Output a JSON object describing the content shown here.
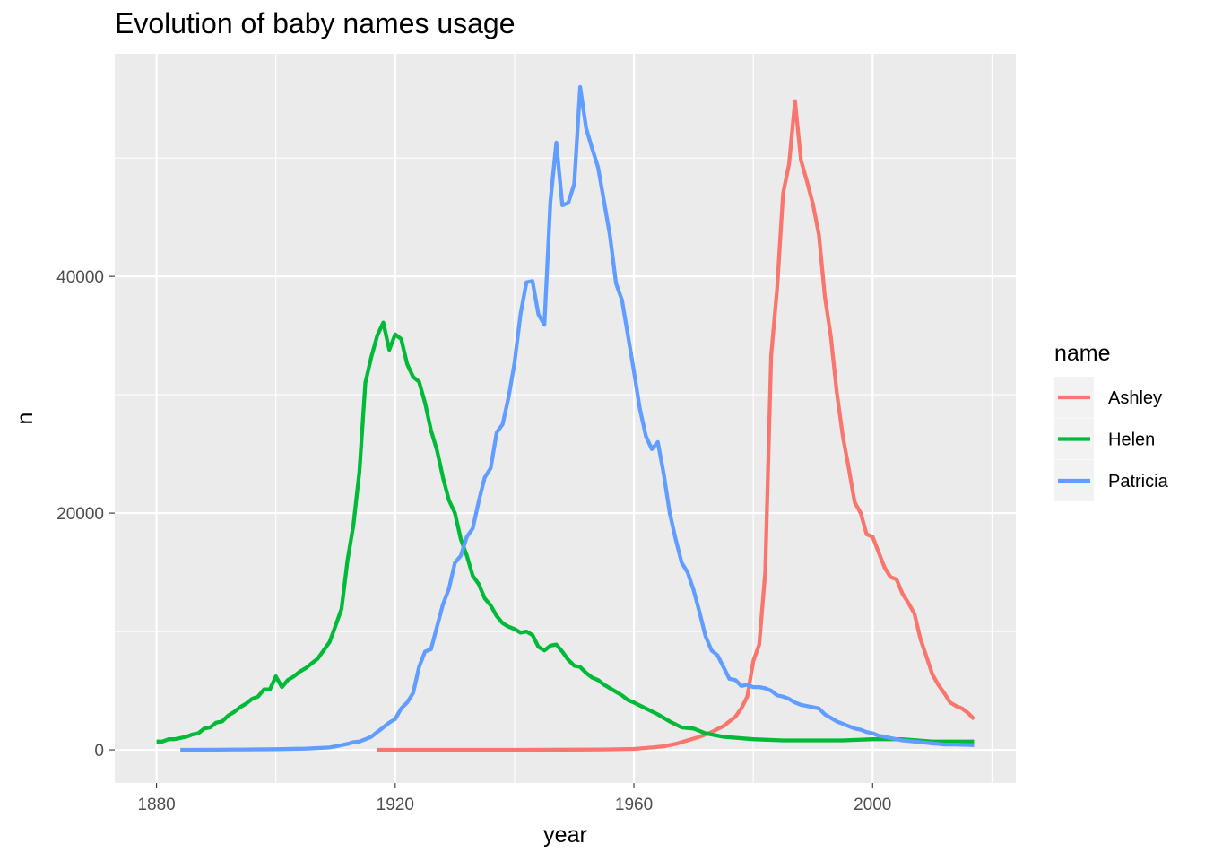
{
  "chart_data": {
    "type": "line",
    "title": "Evolution of baby names usage",
    "xlabel": "year",
    "ylabel": "n",
    "xlim": [
      1873,
      2024
    ],
    "ylim": [
      -2800,
      58800
    ],
    "x_ticks": [
      1880,
      1920,
      1960,
      2000
    ],
    "x_tick_labels": [
      "1880",
      "1920",
      "1960",
      "2000"
    ],
    "y_ticks": [
      0,
      20000,
      40000
    ],
    "y_tick_labels": [
      "0",
      "20000",
      "40000"
    ],
    "y_minor_ticks": [
      10000,
      30000,
      50000
    ],
    "x_minor_ticks": [
      1900,
      1940,
      1980,
      2020
    ],
    "grid": true,
    "background": "#EBEBEB",
    "legend": {
      "title": "name",
      "position": "right"
    },
    "series": [
      {
        "name": "Ashley",
        "color": "#F8766D",
        "x": [
          1917,
          1920,
          1925,
          1930,
          1935,
          1940,
          1945,
          1950,
          1955,
          1960,
          1963,
          1965,
          1967,
          1969,
          1971,
          1973,
          1975,
          1977,
          1978,
          1979,
          1980,
          1981,
          1982,
          1983,
          1984,
          1985,
          1986,
          1987,
          1988,
          1989,
          1990,
          1991,
          1992,
          1993,
          1994,
          1995,
          1996,
          1997,
          1998,
          1999,
          2000,
          2001,
          2002,
          2003,
          2004,
          2005,
          2006,
          2007,
          2008,
          2009,
          2010,
          2011,
          2012,
          2013,
          2014,
          2015,
          2016,
          2017
        ],
        "values": [
          5,
          5,
          5,
          5,
          5,
          5,
          10,
          20,
          30,
          80,
          200,
          300,
          500,
          800,
          1100,
          1500,
          2000,
          2800,
          3500,
          4500,
          7500,
          8900,
          15000,
          33300,
          39000,
          47000,
          49500,
          54800,
          49800,
          48000,
          46100,
          43500,
          38300,
          34900,
          30200,
          26500,
          23800,
          20900,
          20000,
          18200,
          18000,
          16700,
          15400,
          14600,
          14400,
          13200,
          12400,
          11500,
          9400,
          7900,
          6400,
          5500,
          4800,
          4000,
          3700,
          3500,
          3100,
          2600
        ]
      },
      {
        "name": "Helen",
        "color": "#00BA38",
        "x": [
          1880,
          1881,
          1882,
          1883,
          1884,
          1885,
          1886,
          1887,
          1888,
          1889,
          1890,
          1891,
          1892,
          1893,
          1894,
          1895,
          1896,
          1897,
          1898,
          1899,
          1900,
          1901,
          1902,
          1903,
          1904,
          1905,
          1906,
          1907,
          1908,
          1909,
          1910,
          1911,
          1912,
          1913,
          1914,
          1915,
          1916,
          1917,
          1918,
          1919,
          1920,
          1921,
          1922,
          1923,
          1924,
          1925,
          1926,
          1927,
          1928,
          1929,
          1930,
          1931,
          1932,
          1933,
          1934,
          1935,
          1936,
          1937,
          1938,
          1939,
          1940,
          1941,
          1942,
          1943,
          1944,
          1945,
          1946,
          1947,
          1948,
          1949,
          1950,
          1951,
          1952,
          1953,
          1954,
          1955,
          1956,
          1957,
          1958,
          1959,
          1960,
          1962,
          1964,
          1966,
          1968,
          1970,
          1972,
          1975,
          1980,
          1985,
          1990,
          1995,
          2000,
          2005,
          2010,
          2017
        ],
        "values": [
          700,
          700,
          900,
          900,
          1000,
          1100,
          1300,
          1400,
          1800,
          1900,
          2300,
          2400,
          2900,
          3200,
          3600,
          3900,
          4300,
          4500,
          5100,
          5100,
          6200,
          5300,
          5900,
          6200,
          6600,
          6900,
          7300,
          7700,
          8400,
          9100,
          10500,
          11900,
          16000,
          19000,
          23500,
          31000,
          33200,
          35000,
          36100,
          33800,
          35100,
          34700,
          32600,
          31500,
          31100,
          29300,
          27000,
          25300,
          23000,
          21100,
          20000,
          17800,
          16400,
          14700,
          14000,
          12800,
          12200,
          11300,
          10700,
          10400,
          10200,
          9900,
          10000,
          9700,
          8700,
          8400,
          8800,
          8900,
          8300,
          7600,
          7100,
          7000,
          6500,
          6100,
          5900,
          5500,
          5200,
          4900,
          4600,
          4200,
          4000,
          3500,
          3000,
          2400,
          1900,
          1800,
          1400,
          1100,
          900,
          800,
          800,
          800,
          900,
          900,
          700,
          700
        ]
      },
      {
        "name": "Patricia",
        "color": "#619CFF",
        "x": [
          1884,
          1890,
          1895,
          1900,
          1905,
          1909,
          1910,
          1911,
          1912,
          1913,
          1914,
          1915,
          1916,
          1917,
          1918,
          1919,
          1920,
          1921,
          1922,
          1923,
          1924,
          1925,
          1926,
          1927,
          1928,
          1929,
          1930,
          1931,
          1932,
          1933,
          1934,
          1935,
          1936,
          1937,
          1938,
          1939,
          1940,
          1941,
          1942,
          1943,
          1944,
          1945,
          1946,
          1947,
          1948,
          1949,
          1950,
          1951,
          1952,
          1953,
          1954,
          1955,
          1956,
          1957,
          1958,
          1959,
          1960,
          1961,
          1962,
          1963,
          1964,
          1965,
          1966,
          1967,
          1968,
          1969,
          1970,
          1971,
          1972,
          1973,
          1974,
          1975,
          1976,
          1977,
          1978,
          1979,
          1980,
          1981,
          1982,
          1983,
          1984,
          1985,
          1986,
          1987,
          1988,
          1989,
          1990,
          1991,
          1992,
          1993,
          1994,
          1995,
          1996,
          1997,
          1998,
          1999,
          2000,
          2001,
          2002,
          2003,
          2004,
          2005,
          2006,
          2007,
          2008,
          2009,
          2010,
          2011,
          2012,
          2013,
          2014,
          2015,
          2016,
          2017
        ],
        "values": [
          5,
          10,
          30,
          60,
          100,
          200,
          300,
          400,
          500,
          650,
          700,
          900,
          1100,
          1500,
          1900,
          2300,
          2600,
          3500,
          4000,
          4800,
          7000,
          8300,
          8500,
          10400,
          12300,
          13600,
          15800,
          16400,
          18000,
          18700,
          21000,
          23000,
          23800,
          26800,
          27500,
          29800,
          32700,
          36800,
          39500,
          39600,
          36800,
          35900,
          46300,
          51300,
          46000,
          46200,
          47800,
          56000,
          52500,
          50800,
          49200,
          46300,
          43400,
          39400,
          38000,
          35000,
          32000,
          28800,
          26500,
          25400,
          26000,
          23300,
          20000,
          17800,
          15800,
          15000,
          13500,
          11600,
          9600,
          8400,
          8000,
          7000,
          6000,
          5900,
          5400,
          5500,
          5300,
          5300,
          5200,
          5000,
          4600,
          4500,
          4300,
          4000,
          3800,
          3700,
          3600,
          3500,
          3000,
          2700,
          2400,
          2200,
          2000,
          1800,
          1700,
          1500,
          1400,
          1200,
          1100,
          1000,
          900,
          800,
          750,
          700,
          650,
          600,
          550,
          500,
          450,
          450,
          450,
          430,
          420,
          400
        ]
      }
    ]
  }
}
